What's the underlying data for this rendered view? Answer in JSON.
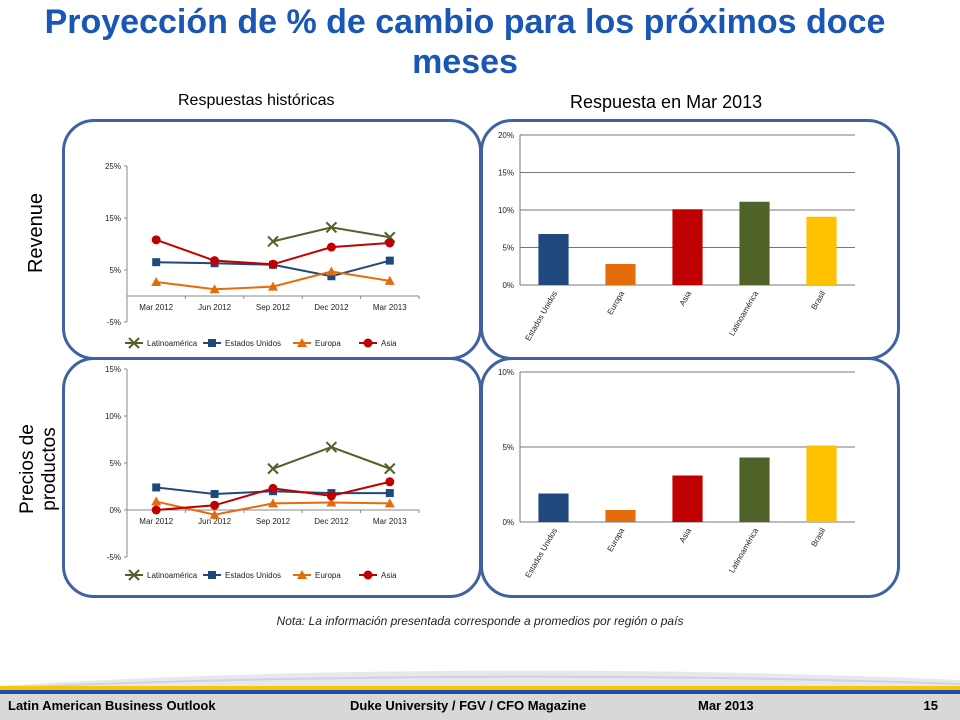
{
  "title": "Proyección de % de cambio para los próximos doce meses",
  "subtitles": {
    "historical": "Respuestas históricas",
    "current": "Respuesta en Mar 2013"
  },
  "row_labels": {
    "revenue": "Revenue",
    "prices": "Precios de productos"
  },
  "note": "Nota: La información presentada corresponde a promedios por región o país",
  "footer": {
    "left": "Latin American Business Outlook",
    "middle": "Duke University / FGV / CFO Magazine",
    "date": "Mar 2013",
    "page": "15"
  },
  "colors": {
    "latinoamerica": "#4f6228",
    "estados_unidos": "#1f497d",
    "europa": "#e46c0a",
    "asia": "#c00000",
    "brasil": "#ffc000",
    "panel_border": "#3f62a3",
    "title": "#1a56b4"
  },
  "chart_data": [
    {
      "type": "line",
      "xlabel": "",
      "ylabel": "",
      "categories": [
        "Mar 2012",
        "Jun 2012",
        "Sep 2012",
        "Dec 2012",
        "Mar 2013"
      ],
      "yticks": [
        "-5%",
        "5%",
        "15%",
        "25%"
      ],
      "ylim": [
        -5,
        25
      ],
      "legend": "bottom",
      "series": [
        {
          "name": "Latinoamérica",
          "marker": "x",
          "values": [
            null,
            null,
            10.5,
            13.2,
            11.3
          ]
        },
        {
          "name": "Estados Unidos",
          "marker": "square",
          "values": [
            6.5,
            6.3,
            6.0,
            3.8,
            6.8
          ]
        },
        {
          "name": "Europa",
          "marker": "triangle",
          "values": [
            2.7,
            1.3,
            1.8,
            4.7,
            2.9
          ]
        },
        {
          "name": "Asia",
          "marker": "circle",
          "values": [
            10.8,
            6.8,
            6.1,
            9.4,
            10.2
          ]
        }
      ]
    },
    {
      "type": "bar",
      "categories": [
        "Estados Unidos",
        "Europa",
        "Asia",
        "Latinoamérica",
        "Brasil"
      ],
      "values": [
        6.8,
        2.8,
        10.1,
        11.1,
        9.1
      ],
      "yticks": [
        "0%",
        "5%",
        "10%",
        "15%",
        "20%"
      ],
      "ylim": [
        0,
        20
      ]
    },
    {
      "type": "line",
      "categories": [
        "Mar 2012",
        "Jun 2012",
        "Sep 2012",
        "Dec 2012",
        "Mar 2013"
      ],
      "yticks": [
        "-5%",
        "0%",
        "5%",
        "10%",
        "15%"
      ],
      "ylim": [
        -5,
        15
      ],
      "legend": "bottom",
      "series": [
        {
          "name": "Latinoamérica",
          "marker": "x",
          "values": [
            null,
            null,
            4.4,
            6.7,
            4.4
          ]
        },
        {
          "name": "Estados Unidos",
          "marker": "square",
          "values": [
            2.4,
            1.7,
            2.0,
            1.8,
            1.8
          ]
        },
        {
          "name": "Europa",
          "marker": "triangle",
          "values": [
            0.9,
            -0.5,
            0.7,
            0.8,
            0.7
          ]
        },
        {
          "name": "Asia",
          "marker": "circle",
          "values": [
            0.0,
            0.5,
            2.3,
            1.5,
            3.0
          ]
        }
      ]
    },
    {
      "type": "bar",
      "categories": [
        "Estados Unidos",
        "Europa",
        "Asia",
        "Latinoamérica",
        "Brasil"
      ],
      "values": [
        1.9,
        0.8,
        3.1,
        4.3,
        5.1
      ],
      "yticks": [
        "0%",
        "5%",
        "10%"
      ],
      "ylim": [
        0,
        10
      ]
    }
  ]
}
